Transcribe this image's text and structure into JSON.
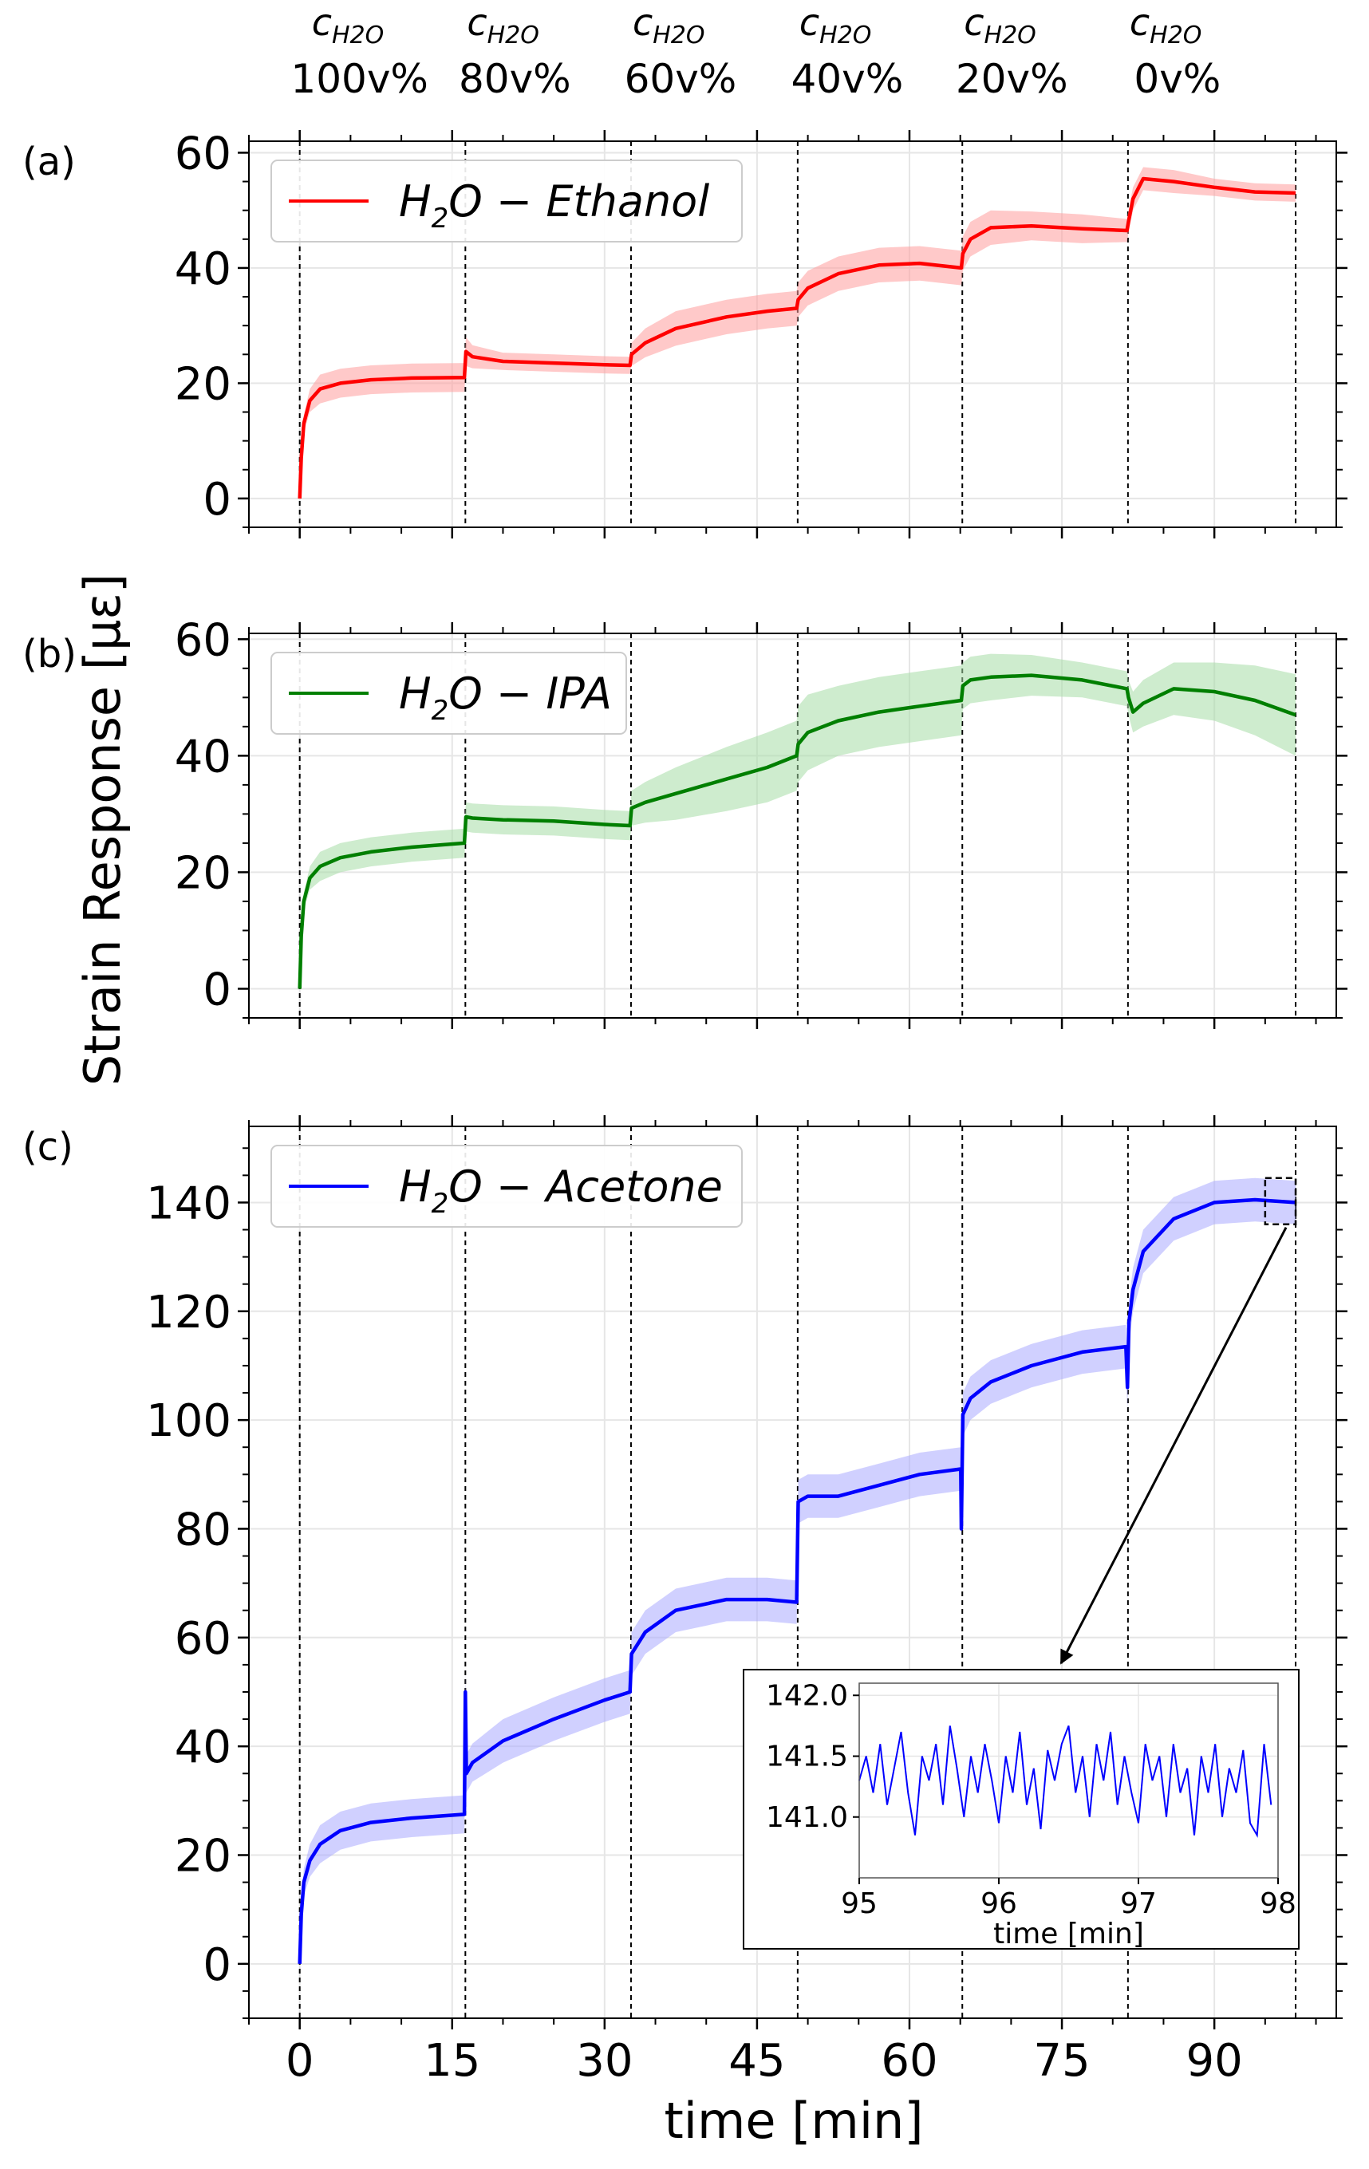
{
  "axis": {
    "ylabel": "Strain Response [με]",
    "xlabel": "time [min]",
    "xticks": [
      "0",
      "15",
      "30",
      "45",
      "60",
      "75",
      "90"
    ]
  },
  "concentrations": {
    "symbol": "c",
    "subscript": "H2O",
    "labels": [
      "100v%",
      "80v%",
      "60v%",
      "40v%",
      "20v%",
      "0v%"
    ]
  },
  "chart_data": [
    {
      "type": "line",
      "panel_label": "(a)",
      "legend": "H2O − Ethanol",
      "color": "#ff0000",
      "band_color": "#ff9c9c",
      "xlim": [
        -5,
        102
      ],
      "ylim": [
        -5,
        62
      ],
      "yticks": [
        "0",
        "20",
        "40",
        "60"
      ],
      "yticks_values": [
        0,
        20,
        40,
        60
      ],
      "step_times": [
        0,
        16.3,
        32.6,
        49.0,
        65.2,
        81.5,
        98.0
      ],
      "x": [
        0,
        0.15,
        0.4,
        1,
        2,
        4,
        7,
        11,
        16.2,
        16.35,
        17,
        20,
        25,
        30,
        32.5,
        32.65,
        34,
        37,
        42,
        46,
        48.9,
        49.05,
        50,
        53,
        57,
        61,
        65.1,
        65.25,
        66,
        68,
        72,
        77,
        81.4,
        81.55,
        82,
        83,
        86,
        90,
        94,
        98
      ],
      "y": [
        0,
        7,
        13,
        17,
        19,
        20,
        20.6,
        20.9,
        21,
        25.5,
        24.6,
        23.8,
        23.5,
        23.2,
        23.1,
        25,
        27,
        29.5,
        31.5,
        32.5,
        33,
        34.5,
        36.5,
        39,
        40.5,
        40.8,
        40,
        42.5,
        45,
        47,
        47.3,
        46.8,
        46.5,
        48,
        52,
        55.5,
        55,
        54,
        53.2,
        53
      ],
      "band": [
        0.5,
        1.0,
        1.5,
        2.0,
        2.5,
        2.5,
        2.5,
        2.5,
        2.5,
        2.5,
        2.0,
        1.5,
        1.5,
        1.5,
        1.5,
        2.0,
        2.5,
        3.0,
        3.0,
        3.0,
        3.0,
        3.0,
        3.0,
        3.0,
        3.0,
        3.0,
        3.0,
        3.0,
        3.0,
        3.0,
        2.5,
        2.5,
        2.0,
        2.0,
        2.0,
        2.0,
        2.0,
        1.5,
        1.5,
        1.5
      ]
    },
    {
      "type": "line",
      "panel_label": "(b)",
      "legend": "H2O − IPA",
      "color": "#007f00",
      "band_color": "#a6dca6",
      "xlim": [
        -5,
        102
      ],
      "ylim": [
        -5,
        61
      ],
      "yticks": [
        "0",
        "20",
        "40",
        "60"
      ],
      "yticks_values": [
        0,
        20,
        40,
        60
      ],
      "step_times": [
        0,
        16.3,
        32.6,
        49.0,
        65.2,
        81.5,
        98.0
      ],
      "x": [
        0,
        0.15,
        0.4,
        1,
        2,
        4,
        7,
        11,
        16.2,
        16.35,
        17,
        20,
        25,
        30,
        32.5,
        32.65,
        34,
        37,
        42,
        46,
        48.9,
        49.05,
        50,
        53,
        57,
        61,
        65.1,
        65.25,
        66,
        68,
        72,
        77,
        81.4,
        81.55,
        82,
        83,
        86,
        90,
        94,
        98
      ],
      "y": [
        0,
        9,
        15,
        19,
        21,
        22.5,
        23.5,
        24.3,
        25,
        29.5,
        29.3,
        29,
        28.8,
        28.2,
        28,
        31,
        32,
        33.5,
        36,
        38,
        40,
        42,
        44,
        46,
        47.5,
        48.5,
        49.5,
        52,
        53,
        53.5,
        53.8,
        53,
        51.5,
        50,
        47.5,
        49,
        51.5,
        51,
        49.5,
        47
      ],
      "band": [
        0.5,
        1.0,
        1.5,
        2.0,
        2.5,
        2.5,
        2.5,
        2.5,
        2.5,
        2.5,
        2.5,
        2.5,
        2.5,
        2.5,
        2.5,
        3.0,
        3.5,
        4.5,
        5.5,
        6.0,
        6.0,
        6.5,
        6.5,
        6.0,
        6.0,
        6.0,
        6.0,
        4.0,
        4.0,
        4.0,
        3.5,
        3.0,
        3.0,
        3.0,
        3.5,
        4.0,
        4.5,
        5.0,
        6.0,
        7.0
      ]
    },
    {
      "type": "line",
      "panel_label": "(c)",
      "legend": "H2O − Acetone",
      "color": "#0000ff",
      "band_color": "#aaaaff",
      "xlim": [
        -5,
        102
      ],
      "ylim": [
        -10,
        154
      ],
      "yticks": [
        "0",
        "20",
        "40",
        "60",
        "80",
        "100",
        "120",
        "140"
      ],
      "yticks_values": [
        0,
        20,
        40,
        60,
        80,
        100,
        120,
        140
      ],
      "step_times": [
        0,
        16.3,
        32.6,
        49.0,
        65.2,
        81.5,
        98.0
      ],
      "x": [
        0,
        0.15,
        0.4,
        1,
        2,
        4,
        7,
        11,
        16.2,
        16.3,
        16.4,
        17,
        20,
        25,
        30,
        32.5,
        32.65,
        34,
        37,
        42,
        46,
        48.9,
        49.05,
        50,
        53,
        57,
        61,
        65.05,
        65.1,
        65.25,
        66,
        68,
        72,
        77,
        81.3,
        81.45,
        81.6,
        82,
        83,
        86,
        90,
        94,
        98
      ],
      "y": [
        0,
        9,
        15,
        19,
        22,
        24.5,
        26,
        26.8,
        27.5,
        50,
        35,
        37,
        41,
        45,
        48.5,
        50,
        57,
        61,
        65,
        67,
        67,
        66.5,
        85,
        86,
        86,
        88,
        90,
        91,
        80,
        101,
        104,
        107,
        110,
        112.5,
        113.5,
        106,
        118,
        124,
        131,
        137,
        140,
        140.5,
        140
      ],
      "band": [
        1.0,
        2.0,
        2.5,
        3.0,
        3.5,
        3.5,
        3.5,
        3.5,
        3.5,
        3.5,
        3.5,
        3.5,
        4.0,
        4.0,
        4.0,
        4.0,
        4.0,
        4.0,
        4.0,
        4.0,
        4.0,
        4.0,
        4.0,
        4.0,
        4.0,
        4.0,
        4.0,
        4.0,
        4.0,
        4.0,
        4.0,
        4.0,
        4.0,
        4.0,
        4.0,
        4.0,
        4.0,
        4.0,
        4.0,
        4.0,
        4.0,
        4.0,
        4.0
      ]
    },
    {
      "type": "line",
      "panel_label": "inset",
      "xlabel": "time [min]",
      "color": "#0000ff",
      "xlim": [
        95,
        98
      ],
      "ylim": [
        140.5,
        142.1
      ],
      "xticks": [
        "95",
        "96",
        "97",
        "98"
      ],
      "xticks_values": [
        95,
        96,
        97,
        98
      ],
      "yticks": [
        "141.0",
        "141.5",
        "142.0"
      ],
      "yticks_values": [
        141.0,
        141.5,
        142.0
      ],
      "x": [
        95.0,
        95.05,
        95.1,
        95.15,
        95.2,
        95.25,
        95.3,
        95.35,
        95.4,
        95.45,
        95.5,
        95.55,
        95.6,
        95.65,
        95.7,
        95.75,
        95.8,
        95.85,
        95.9,
        95.95,
        96.0,
        96.05,
        96.1,
        96.15,
        96.2,
        96.25,
        96.3,
        96.35,
        96.4,
        96.45,
        96.5,
        96.55,
        96.6,
        96.65,
        96.7,
        96.75,
        96.8,
        96.85,
        96.9,
        96.95,
        97.0,
        97.05,
        97.1,
        97.15,
        97.2,
        97.25,
        97.3,
        97.35,
        97.4,
        97.45,
        97.5,
        97.55,
        97.6,
        97.65,
        97.7,
        97.75,
        97.8,
        97.85,
        97.9,
        97.95
      ],
      "y": [
        141.3,
        141.5,
        141.2,
        141.6,
        141.1,
        141.4,
        141.7,
        141.2,
        140.85,
        141.5,
        141.3,
        141.6,
        141.1,
        141.75,
        141.4,
        141.0,
        141.5,
        141.2,
        141.6,
        141.3,
        140.95,
        141.5,
        141.2,
        141.7,
        141.1,
        141.4,
        140.9,
        141.55,
        141.3,
        141.6,
        141.75,
        141.2,
        141.5,
        141.0,
        141.6,
        141.3,
        141.7,
        141.1,
        141.5,
        141.2,
        140.95,
        141.6,
        141.3,
        141.5,
        141.0,
        141.6,
        141.2,
        141.4,
        140.85,
        141.5,
        141.2,
        141.6,
        141.0,
        141.4,
        141.2,
        141.55,
        140.95,
        140.85,
        141.6,
        141.1
      ]
    }
  ]
}
